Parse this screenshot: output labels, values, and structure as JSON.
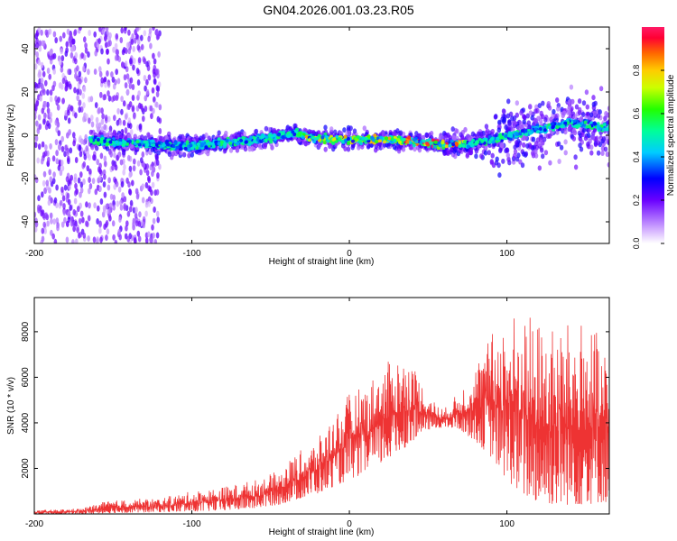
{
  "title": "GN04.2026.001.03.23.R05",
  "chart_data": [
    {
      "type": "heatmap",
      "xlabel": "Height of straight line (km)",
      "ylabel": "Frequency (Hz)",
      "xlim": [
        -200,
        165
      ],
      "ylim": [
        -50,
        50
      ],
      "x_ticks": [
        -200,
        -100,
        0,
        100
      ],
      "y_ticks": [
        -40,
        -20,
        0,
        20,
        40
      ],
      "colorbar": {
        "label": "Normalized spectral amplitude",
        "range": [
          0,
          1
        ],
        "ticks": [
          "0.0",
          "0.2",
          "0.4",
          "0.6",
          "0.8"
        ]
      },
      "ridge": {
        "x": [
          -165,
          -150,
          -130,
          -110,
          -100,
          -90,
          -70,
          -50,
          -35,
          -25,
          -10,
          0,
          10,
          30,
          40,
          55,
          70,
          85,
          95,
          105,
          115,
          125,
          140,
          150,
          165
        ],
        "y": [
          -2,
          -3,
          -4,
          -5,
          -5,
          -4,
          -3,
          -1,
          1,
          -1,
          -2,
          -2,
          -2,
          -2,
          -3,
          -4,
          -4,
          -3,
          -1,
          0,
          2,
          3,
          6,
          5,
          3
        ]
      }
    },
    {
      "type": "line",
      "xlabel": "Height of straight line (km)",
      "ylabel": "SNR (10 * v/v)",
      "xlim": [
        -200,
        165
      ],
      "ylim": [
        0,
        9500
      ],
      "x_ticks": [
        -200,
        -100,
        0,
        100
      ],
      "y_ticks": [
        2000,
        4000,
        6000,
        8000
      ],
      "color": "#ee3333",
      "envelope": {
        "x": [
          -200,
          -170,
          -155,
          -140,
          -120,
          -100,
          -80,
          -60,
          -45,
          -35,
          -20,
          -10,
          0,
          10,
          20,
          30,
          40,
          50,
          60,
          70,
          80,
          90,
          100,
          110,
          120,
          130,
          140,
          150,
          160,
          165
        ],
        "low": [
          0,
          0,
          30,
          50,
          80,
          100,
          150,
          250,
          400,
          600,
          900,
          1200,
          1500,
          1800,
          2200,
          2600,
          3200,
          3700,
          3800,
          3700,
          3200,
          2500,
          1500,
          800,
          500,
          400,
          400,
          400,
          500,
          500
        ],
        "high": [
          150,
          250,
          550,
          650,
          700,
          1000,
          1200,
          1500,
          1900,
          2600,
          3300,
          4400,
          5300,
          5700,
          6400,
          7000,
          6700,
          5200,
          4600,
          5400,
          6600,
          7900,
          8800,
          9000,
          8500,
          8200,
          8400,
          8600,
          7700,
          7000
        ]
      }
    }
  ]
}
